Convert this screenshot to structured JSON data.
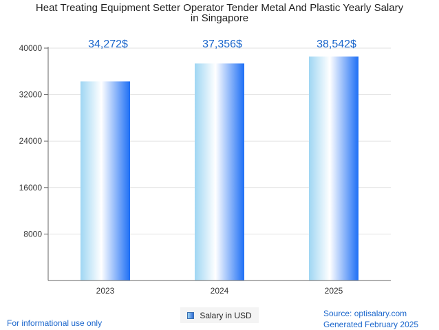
{
  "chart_data": {
    "type": "bar",
    "title_line1": "Heat Treating Equipment Setter Operator Tender Metal And Plastic Yearly Salary",
    "title_line2": "in Singapore",
    "categories": [
      "2023",
      "2024",
      "2025"
    ],
    "series": [
      {
        "name": "Salary in USD",
        "values": [
          34272,
          37356,
          38542
        ]
      }
    ],
    "data_labels": [
      "34,272$",
      "37,356$",
      "38,542$"
    ],
    "yticks": [
      8000,
      16000,
      24000,
      32000,
      40000
    ],
    "ylim": [
      0,
      40000
    ],
    "grid": true,
    "legend_position": "bottom-center",
    "colors": {
      "bar_light": "#9fd6f3",
      "bar_mid": "#ffffff",
      "bar_dark": "#1e6ff5",
      "label": "#1a66cc"
    }
  },
  "footer": {
    "left": "For informational use only",
    "source": "Source: optisalary.com",
    "generated": "Generated February 2025"
  }
}
